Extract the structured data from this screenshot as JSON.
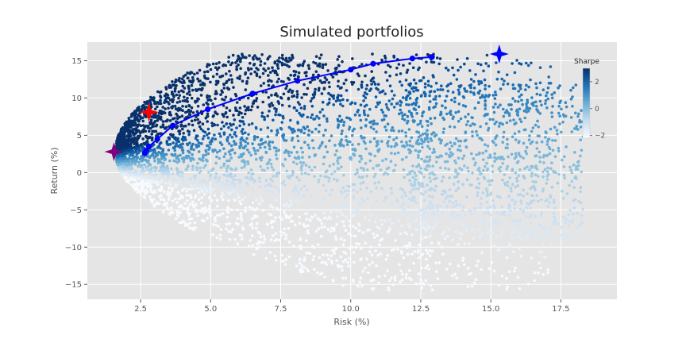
{
  "chart_data": {
    "type": "scatter",
    "title": "Simulated portfolios",
    "xlabel": "Risk (%)",
    "ylabel": "Return (%)",
    "xlim": [
      0.6,
      19.5
    ],
    "ylim": [
      -17,
      17.5
    ],
    "xticks": [
      2.5,
      5.0,
      7.5,
      10.0,
      12.5,
      15.0,
      17.5
    ],
    "xtick_labels": [
      "2.5",
      "5.0",
      "7.5",
      "10.0",
      "12.5",
      "15.0",
      "17.5"
    ],
    "yticks": [
      -15,
      -10,
      -5,
      0,
      5,
      10,
      15
    ],
    "ytick_labels": [
      "−15",
      "−10",
      "−5",
      "0",
      "5",
      "10",
      "15"
    ],
    "grid": true,
    "background": "#e5e5e5",
    "colorbar": {
      "title": "Sharpe",
      "range": [
        -2.2,
        3.0
      ],
      "ticks": [
        -2,
        0,
        2
      ],
      "tick_labels": [
        "−2",
        "0",
        "2"
      ],
      "colormap": "Blues",
      "placement": "right"
    },
    "scatter_cloud": {
      "description_color": "colored by Sharpe ratio",
      "envelope_upper": [
        [
          1.7,
          3.8
        ],
        [
          2.6,
          6.5
        ],
        [
          4.0,
          8.8
        ],
        [
          5.5,
          10.5
        ],
        [
          7.5,
          12.5
        ],
        [
          9.5,
          13.8
        ],
        [
          11.5,
          15.2
        ],
        [
          13.5,
          15.6
        ],
        [
          14.5,
          15.8
        ]
      ],
      "envelope_lower": [
        [
          1.7,
          0.5
        ],
        [
          3.0,
          -3.5
        ],
        [
          5.0,
          -8.5
        ],
        [
          7.0,
          -12.5
        ],
        [
          9.0,
          -15.0
        ],
        [
          9.5,
          -15.5
        ]
      ],
      "right_extent": [
        [
          15.5,
          12.0
        ],
        [
          18.0,
          11.0
        ],
        [
          17.5,
          2.0
        ],
        [
          15.5,
          -1.8
        ],
        [
          15.3,
          -9.0
        ],
        [
          13.0,
          -11.0
        ]
      ]
    },
    "efficient_frontier": {
      "color": "#0000ff",
      "x": [
        2.65,
        2.7,
        2.8,
        3.1,
        3.65,
        4.9,
        6.5,
        8.1,
        10.0,
        10.8,
        12.2,
        12.9
      ],
      "y": [
        2.6,
        2.9,
        3.5,
        4.5,
        6.3,
        8.5,
        10.6,
        12.3,
        13.8,
        14.6,
        15.3,
        15.5
      ]
    },
    "markers": [
      {
        "label": "min-volatility",
        "x": 1.55,
        "y": 2.8,
        "color": "#800080"
      },
      {
        "label": "max-sharpe",
        "x": 2.8,
        "y": 8.1,
        "color": "#ff0000"
      },
      {
        "label": "max-return",
        "x": 15.3,
        "y": 15.9,
        "color": "#0000ff"
      }
    ]
  }
}
